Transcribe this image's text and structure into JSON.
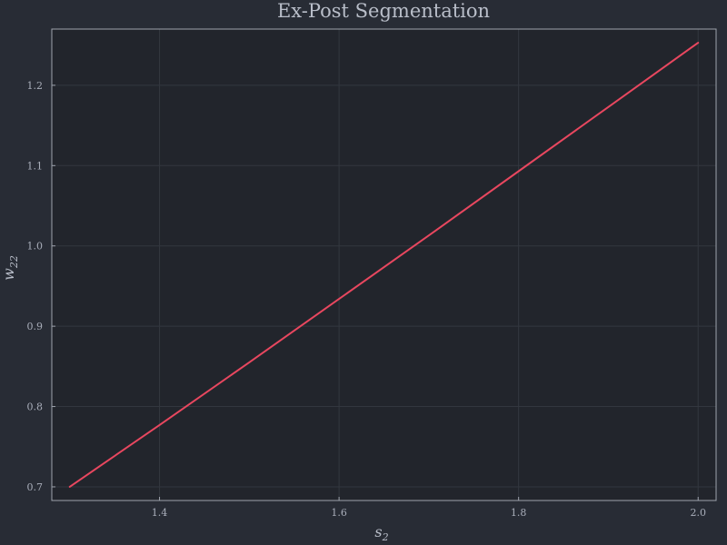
{
  "chart_data": {
    "type": "line",
    "title": "Ex-Post Segmentation",
    "xlabel": {
      "base": "s",
      "sub": "2"
    },
    "ylabel": {
      "base": "w",
      "sub": "22"
    },
    "xlim": [
      1.28,
      2.02
    ],
    "ylim": [
      0.683,
      1.27
    ],
    "xticks": [
      1.4,
      1.6,
      1.8,
      2.0
    ],
    "xtick_labels": [
      "1.4",
      "1.6",
      "1.8",
      "2.0"
    ],
    "yticks": [
      0.7,
      0.8,
      0.9,
      1.0,
      1.1,
      1.2
    ],
    "ytick_labels": [
      "0.7",
      "0.8",
      "0.9",
      "1.0",
      "1.1",
      "1.2"
    ],
    "grid": true,
    "legend": "none",
    "series": [
      {
        "color": "#e8475f",
        "x": [
          1.3,
          1.4,
          1.5,
          1.6,
          1.7,
          1.8,
          1.9,
          2.0
        ],
        "y": [
          0.7,
          0.777,
          0.855,
          0.934,
          1.013,
          1.093,
          1.173,
          1.253
        ]
      }
    ],
    "colors": {
      "background": "#282c35",
      "plot_background": "#22252c",
      "frame": "#9ea3ad",
      "grid": "#33373f"
    }
  }
}
